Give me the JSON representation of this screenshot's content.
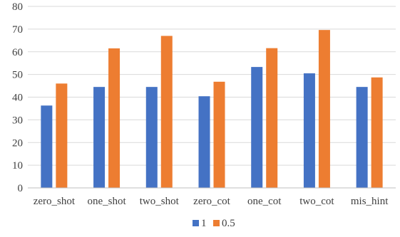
{
  "chart_data": {
    "type": "bar",
    "title": "",
    "xlabel": "",
    "ylabel": "",
    "categories": [
      "zero_shot",
      "one_shot",
      "two_shot",
      "zero_cot",
      "one_cot",
      "two_cot",
      "mis_hint"
    ],
    "series": [
      {
        "name": "1",
        "color": "#4472c4",
        "values": [
          36.3,
          44.5,
          44.5,
          40.4,
          53.3,
          50.5,
          44.5
        ]
      },
      {
        "name": "0.5",
        "color": "#ed7d31",
        "values": [
          46.0,
          61.5,
          67.0,
          46.8,
          61.6,
          69.6,
          48.7
        ]
      }
    ],
    "ylim": [
      0,
      80
    ],
    "yticks": [
      0,
      10,
      20,
      30,
      40,
      50,
      60,
      70,
      80
    ],
    "grid": true,
    "legend": "bottom"
  }
}
